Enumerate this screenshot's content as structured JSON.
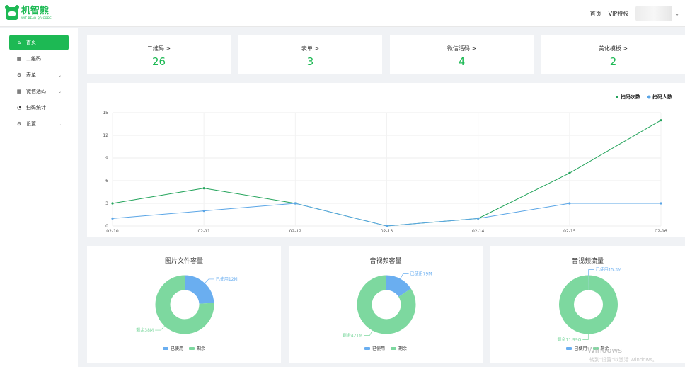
{
  "brand": {
    "name": "机智熊",
    "subtitle": "WIT BEAR QR CODE"
  },
  "topnav": {
    "home": "首页",
    "vip": "VIP特权"
  },
  "sidebar": {
    "items": [
      {
        "label": "首页",
        "icon": "home-icon"
      },
      {
        "label": "二维码",
        "icon": "qrcode-icon"
      },
      {
        "label": "表单",
        "icon": "gear-icon"
      },
      {
        "label": "微信活码",
        "icon": "qrcode-icon"
      },
      {
        "label": "扫码统计",
        "icon": "pie-icon"
      },
      {
        "label": "设置",
        "icon": "gear-icon"
      }
    ]
  },
  "stats": [
    {
      "label": "二维码 >",
      "value": "26"
    },
    {
      "label": "表单 >",
      "value": "3"
    },
    {
      "label": "微信活码 >",
      "value": "4"
    },
    {
      "label": "美化模板 >",
      "value": "2"
    }
  ],
  "colors": {
    "green": "#1db954",
    "line_green": "#22a35a",
    "line_blue": "#5aa5e6",
    "pie_blue": "#6aaef0",
    "pie_green": "#7dd89f"
  },
  "chart_data": [
    {
      "type": "line",
      "x": [
        "02-10",
        "02-11",
        "02-12",
        "02-13",
        "02-14",
        "02-15",
        "02-16"
      ],
      "yticks": [
        "0",
        "3",
        "6",
        "9",
        "12",
        "15"
      ],
      "ylim": [
        0,
        15
      ],
      "grid": true,
      "legend_position": "top-right",
      "series": [
        {
          "name": "扫码次数",
          "values": [
            3,
            5,
            3,
            0,
            1,
            7,
            14
          ]
        },
        {
          "name": "扫码人数",
          "values": [
            1,
            2,
            3,
            0,
            1,
            3,
            3
          ]
        }
      ]
    },
    {
      "type": "pie",
      "title": "图片文件容量",
      "legend": [
        "已使用",
        "剩余"
      ],
      "slices": [
        {
          "label": "已使用12M",
          "value": 12
        },
        {
          "label": "剩余38M",
          "value": 38
        }
      ]
    },
    {
      "type": "pie",
      "title": "音视频容量",
      "legend": [
        "已使用",
        "剩余"
      ],
      "slices": [
        {
          "label": "已使用79M",
          "value": 79
        },
        {
          "label": "剩余421M",
          "value": 421
        }
      ]
    },
    {
      "type": "pie",
      "title": "音视频流量",
      "legend": [
        "已使用",
        "剩余"
      ],
      "slices": [
        {
          "label": "已使用15.3M",
          "value": 15.3
        },
        {
          "label": "剩余11.99G",
          "value": 12277.8
        }
      ]
    }
  ],
  "watermark": {
    "line1": "Windows",
    "line2": "转到\"设置\"以激活 Windows。"
  }
}
